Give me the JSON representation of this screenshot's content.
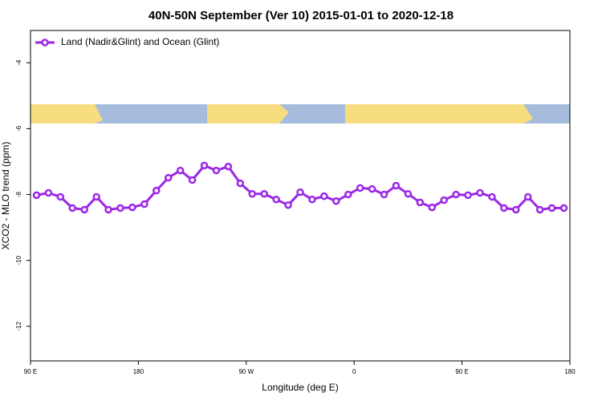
{
  "chart_data": {
    "type": "line",
    "title": "40N-50N September (Ver 10)   2015-01-01 to 2020-12-18",
    "xlabel": "Longitude (deg E)",
    "ylabel": "XCO2 - MLO trend (ppm)",
    "xlim": [
      90,
      540
    ],
    "xticks": [
      {
        "value": 90,
        "label": "90 E"
      },
      180,
      {
        "value": 270,
        "label": "90 W"
      },
      {
        "value": 360,
        "label": "0"
      },
      {
        "value": 450,
        "label": "90 E"
      },
      {
        "value": 540,
        "label": "180"
      }
    ],
    "ylim": [
      -13.05,
      -3.02
    ],
    "yticks": [
      -4,
      -6,
      -8,
      -10,
      -12
    ],
    "legend": "top-left",
    "x": [
      95,
      105,
      115,
      125,
      135,
      145,
      155,
      165,
      175,
      185,
      195,
      205,
      215,
      225,
      235,
      245,
      255,
      265,
      275,
      285,
      295,
      305,
      315,
      325,
      335,
      345,
      355,
      365,
      375,
      385,
      395,
      405,
      415,
      425,
      435,
      445,
      455,
      465,
      475,
      485,
      495,
      505,
      515,
      525,
      535
    ],
    "series": [
      {
        "name": "Land (Nadir&Glint) and Ocean (Glint)",
        "color": "#9b27e6",
        "values": [
          -8.02,
          -7.95,
          -8.07,
          -8.41,
          -8.46,
          -8.07,
          -8.46,
          -8.41,
          -8.39,
          -8.29,
          -7.88,
          -7.49,
          -7.27,
          -7.56,
          -7.12,
          -7.27,
          -7.15,
          -7.66,
          -7.98,
          -7.98,
          -8.15,
          -8.32,
          -7.93,
          -8.15,
          -8.05,
          -8.2,
          -8.0,
          -7.8,
          -7.83,
          -8.0,
          -7.73,
          -7.98,
          -8.24,
          -8.39,
          -8.17,
          -8.0,
          -8.02,
          -7.95,
          -8.07,
          -8.41,
          -8.46,
          -8.07,
          -8.46,
          -8.41,
          -8.41
        ]
      }
    ]
  }
}
